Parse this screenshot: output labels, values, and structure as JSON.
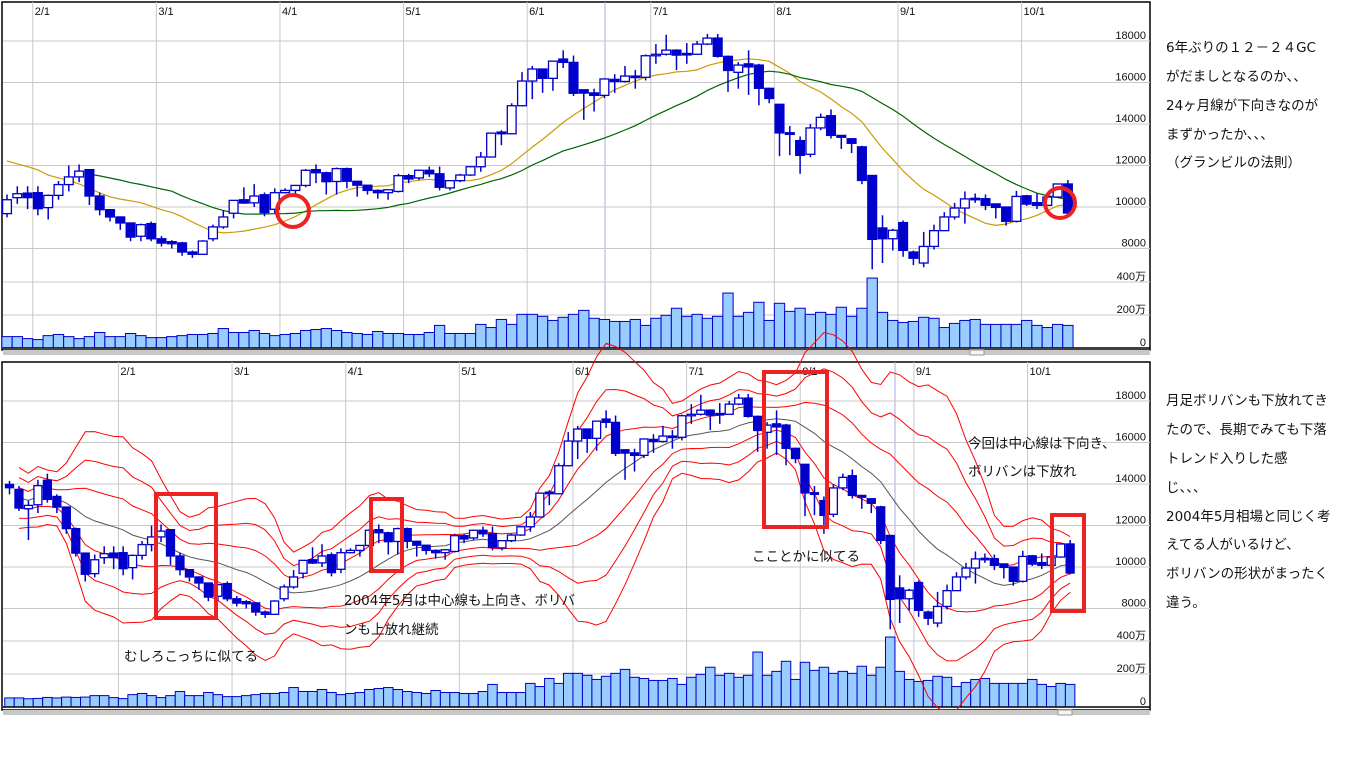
{
  "chart_data": {
    "type": "candlestick",
    "price_ticks": [
      "18000",
      "16000",
      "14000",
      "12000",
      "10000",
      "8000"
    ],
    "price_tick_values": [
      18000,
      16000,
      14000,
      12000,
      10000,
      8000
    ],
    "volume_ticks": [
      "400万",
      "200万",
      "0"
    ],
    "volume_tick_values": [
      400,
      200,
      0
    ],
    "month_ticks": [
      {
        "label": "2/1",
        "index": 11.5
      },
      {
        "label": "3/1",
        "index": 23.5
      },
      {
        "label": "4/1",
        "index": 35.5
      },
      {
        "label": "5/1",
        "index": 47.5
      },
      {
        "label": "6/1",
        "index": 59.5
      },
      {
        "label": "7/1",
        "index": 71.5
      },
      {
        "label": "8/1",
        "index": 83.5
      },
      {
        "label": "9/1",
        "index": 95.5
      },
      {
        "label": "10/1",
        "index": 107.5
      }
    ],
    "top_panel_first_index": 9,
    "bottom_panel_first_index": 0,
    "moving_average_periods": [
      13,
      26
    ],
    "bollinger": {
      "period": 13,
      "sigmas": [
        1,
        2,
        3
      ]
    },
    "candles_ohlc": [
      [
        13980,
        14150,
        13500,
        13820
      ],
      [
        13740,
        13900,
        12700,
        12840
      ],
      [
        12810,
        13200,
        11300,
        12970
      ],
      [
        13000,
        14200,
        12600,
        13920
      ],
      [
        14180,
        14500,
        13100,
        13260
      ],
      [
        13400,
        13500,
        12600,
        12890
      ],
      [
        12890,
        12900,
        11600,
        11850
      ],
      [
        11850,
        11900,
        10500,
        10670
      ],
      [
        10670,
        10700,
        9300,
        9650
      ],
      [
        9680,
        10600,
        9500,
        10350
      ],
      [
        10450,
        11000,
        10150,
        10640
      ],
      [
        10670,
        11000,
        9900,
        10450
      ],
      [
        10690,
        11000,
        9600,
        9920
      ],
      [
        9970,
        10600,
        9400,
        10560
      ],
      [
        10560,
        11250,
        10350,
        11080
      ],
      [
        11080,
        12000,
        10750,
        11450
      ],
      [
        11450,
        12050,
        11200,
        11730
      ],
      [
        11800,
        11800,
        10100,
        10530
      ],
      [
        10530,
        10700,
        9600,
        9870
      ],
      [
        9870,
        9900,
        9300,
        9520
      ],
      [
        9520,
        9550,
        8900,
        9230
      ],
      [
        9230,
        9250,
        8350,
        8550
      ],
      [
        8590,
        9200,
        8350,
        9150
      ],
      [
        9200,
        9300,
        8350,
        8470
      ],
      [
        8470,
        8600,
        8100,
        8260
      ],
      [
        8330,
        8400,
        8000,
        8230
      ],
      [
        8270,
        8320,
        7650,
        7830
      ],
      [
        7830,
        7900,
        7550,
        7720
      ],
      [
        7720,
        8400,
        7700,
        8360
      ],
      [
        8470,
        9150,
        8350,
        9040
      ],
      [
        9040,
        9850,
        8950,
        9520
      ],
      [
        9700,
        10320,
        9450,
        10320
      ],
      [
        10350,
        10950,
        10150,
        10190
      ],
      [
        10200,
        11100,
        10000,
        10530
      ],
      [
        10590,
        10700,
        9550,
        9730
      ],
      [
        9890,
        10900,
        9700,
        10690
      ],
      [
        10690,
        10900,
        10650,
        10800
      ],
      [
        10800,
        11050,
        10500,
        11040
      ],
      [
        11040,
        11830,
        10950,
        11770
      ],
      [
        11800,
        12050,
        11150,
        11650
      ],
      [
        11650,
        11700,
        10600,
        11220
      ],
      [
        11230,
        11900,
        10600,
        11850
      ],
      [
        11850,
        11900,
        10900,
        11240
      ],
      [
        11240,
        11250,
        10500,
        11050
      ],
      [
        11050,
        11050,
        10600,
        10800
      ],
      [
        10800,
        10850,
        10400,
        10690
      ],
      [
        10690,
        10850,
        10350,
        10830
      ],
      [
        10750,
        11600,
        10700,
        11510
      ],
      [
        11510,
        11600,
        11150,
        11350
      ],
      [
        11400,
        11800,
        11300,
        11770
      ],
      [
        11770,
        11950,
        11450,
        11600
      ],
      [
        11600,
        11950,
        10800,
        10950
      ],
      [
        10920,
        11300,
        10800,
        11270
      ],
      [
        11270,
        11600,
        11200,
        11540
      ],
      [
        11540,
        11950,
        11500,
        11940
      ],
      [
        11940,
        12650,
        11700,
        12410
      ],
      [
        12410,
        13560,
        12400,
        13560
      ],
      [
        13610,
        13700,
        12980,
        13530
      ],
      [
        13530,
        15000,
        13500,
        14880
      ],
      [
        14880,
        16500,
        14850,
        16070
      ],
      [
        16070,
        16800,
        15200,
        16650
      ],
      [
        16650,
        16650,
        15500,
        16200
      ],
      [
        16200,
        17050,
        15600,
        17030
      ],
      [
        17130,
        17550,
        16700,
        16970
      ],
      [
        16970,
        17300,
        15350,
        15480
      ],
      [
        15650,
        15650,
        14200,
        15490
      ],
      [
        15500,
        15700,
        14600,
        15380
      ],
      [
        15380,
        16200,
        15250,
        16170
      ],
      [
        16150,
        16400,
        15500,
        16050
      ],
      [
        16050,
        16800,
        16000,
        16310
      ],
      [
        16310,
        16600,
        15700,
        16250
      ],
      [
        16250,
        17350,
        16100,
        17290
      ],
      [
        17290,
        17850,
        16900,
        17360
      ],
      [
        17360,
        18300,
        17300,
        17560
      ],
      [
        17560,
        17600,
        16600,
        17320
      ],
      [
        17400,
        17900,
        16900,
        17360
      ],
      [
        17360,
        18000,
        17350,
        17850
      ],
      [
        17850,
        18340,
        17800,
        18140
      ],
      [
        18140,
        18340,
        17200,
        17260
      ],
      [
        17260,
        17300,
        15550,
        16580
      ],
      [
        16490,
        16980,
        15700,
        16840
      ],
      [
        16900,
        17550,
        15400,
        16750
      ],
      [
        16840,
        16900,
        14900,
        15720
      ],
      [
        15720,
        15750,
        15000,
        15230
      ],
      [
        14950,
        14950,
        12450,
        13570
      ],
      [
        13580,
        13900,
        12500,
        13500
      ],
      [
        13200,
        13400,
        11600,
        12490
      ],
      [
        12540,
        14000,
        12400,
        13810
      ],
      [
        13810,
        14500,
        13700,
        14320
      ],
      [
        14400,
        14700,
        13300,
        13450
      ],
      [
        13450,
        13450,
        12800,
        13360
      ],
      [
        13290,
        13300,
        12600,
        13070
      ],
      [
        12900,
        12950,
        11100,
        11280
      ],
      [
        11520,
        11520,
        7000,
        8440
      ],
      [
        8990,
        9600,
        7300,
        8470
      ],
      [
        8470,
        8950,
        7900,
        8880
      ],
      [
        9250,
        9350,
        7600,
        7910
      ],
      [
        7830,
        7900,
        7200,
        7530
      ],
      [
        7300,
        8800,
        7100,
        8100
      ],
      [
        8100,
        9150,
        7950,
        8860
      ],
      [
        8860,
        9750,
        8860,
        9520
      ],
      [
        9520,
        10200,
        9400,
        9950
      ],
      [
        9950,
        10750,
        9200,
        10390
      ],
      [
        10420,
        10650,
        10200,
        10350
      ],
      [
        10400,
        10600,
        9850,
        10080
      ],
      [
        10150,
        10150,
        9450,
        9980
      ],
      [
        10000,
        10000,
        9100,
        9310
      ],
      [
        9310,
        10780,
        9250,
        10510
      ],
      [
        10540,
        10580,
        10050,
        10140
      ],
      [
        10210,
        10650,
        9900,
        10080
      ],
      [
        10080,
        10550,
        10060,
        10480
      ],
      [
        10480,
        11130,
        10450,
        11110
      ],
      [
        11110,
        11300,
        9650,
        9710
      ]
    ],
    "volume_10k_shares": [
      55,
      55,
      50,
      52,
      58,
      55,
      60,
      58,
      60,
      69,
      69,
      57,
      51,
      75,
      82,
      69,
      57,
      69,
      94,
      69,
      69,
      88,
      75,
      63,
      63,
      69,
      75,
      82,
      82,
      88,
      118,
      94,
      94,
      106,
      88,
      75,
      82,
      88,
      106,
      112,
      118,
      106,
      94,
      88,
      82,
      100,
      88,
      88,
      82,
      82,
      94,
      137,
      88,
      88,
      88,
      143,
      124,
      173,
      143,
      204,
      204,
      192,
      167,
      186,
      204,
      228,
      180,
      173,
      161,
      161,
      173,
      137,
      180,
      198,
      241,
      192,
      204,
      180,
      192,
      333,
      192,
      216,
      277,
      167,
      271,
      222,
      241,
      204,
      216,
      204,
      247,
      192,
      241,
      424,
      216,
      167,
      155,
      161,
      186,
      180,
      124,
      149,
      167,
      173,
      143,
      143,
      143,
      143,
      167,
      137,
      124,
      143,
      137
    ],
    "colors": {
      "candle": "#0000cc",
      "volume_fill": "#99ccff",
      "ma_short": "#cc9a06",
      "ma_long": "#006400",
      "band": "#ff0000",
      "band_center": "#555555",
      "annotation": "#ee2222",
      "grid": "#c8c8c8"
    }
  },
  "annotations": {
    "top_note": [
      "6年ぶりの１２－２４GC",
      "がだましとなるのか、、",
      "24ヶ月線が下向きなのが",
      "まずかったか、、、",
      "（グランビルの法則）"
    ],
    "bottom_note": [
      "月足ボリバンも下放れてき",
      "たので、長期でみても下落",
      "トレンド入りした感",
      "じ、、、",
      "2004年5月相場と同じく考",
      "えてる人がいるけど、",
      "ボリバンの形状がまったく",
      "違う。"
    ],
    "label_similar_here": "むしろこっちに似てる",
    "label_2004_line1": "2004年5月は中心線も上向き、ボリバ",
    "label_2004_line2": "ンも上放れ継続",
    "label_similar_aug": "こことかに似てる",
    "label_now_line1": "今回は中心線は下向き、",
    "label_now_line2": "ボリバンは下放れ"
  }
}
